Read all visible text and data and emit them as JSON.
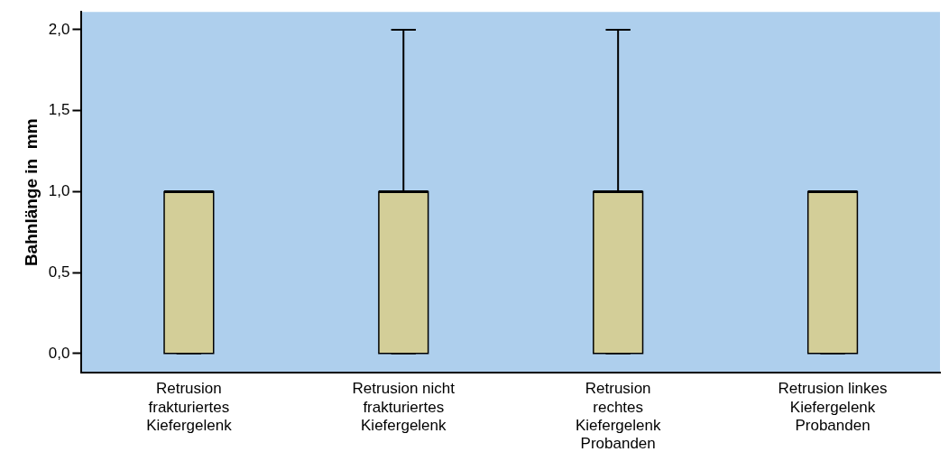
{
  "chart_data": {
    "type": "box",
    "ylabel": "Bahnlänge in  mm",
    "categories": [
      "Retrusion frakturiertes Kiefergelenk",
      "Retrusion nicht frakturiertes Kiefergelenk",
      "Retrusion rechtes Kiefergelenk Probanden",
      "Retrusion linkes Kiefergelenk Probanden"
    ],
    "boxes": [
      {
        "low": 0,
        "q1": 0,
        "median": 1,
        "q3": 1,
        "high": 1
      },
      {
        "low": 0,
        "q1": 0,
        "median": 1,
        "q3": 1,
        "high": 2
      },
      {
        "low": 0,
        "q1": 0,
        "median": 1,
        "q3": 1,
        "high": 2
      },
      {
        "low": 0,
        "q1": 0,
        "median": 1,
        "q3": 1,
        "high": 1
      }
    ],
    "color": "#d3ce98",
    "ylim": [
      -0.12,
      2.11
    ],
    "yticks": [
      {
        "value": 0,
        "label": "0,0"
      },
      {
        "value": 0.5,
        "label": "0,5"
      },
      {
        "value": 1,
        "label": "1,0"
      },
      {
        "value": 1.5,
        "label": "1,5"
      },
      {
        "value": 2,
        "label": "2,0"
      }
    ],
    "grid": false,
    "legend": false
  }
}
